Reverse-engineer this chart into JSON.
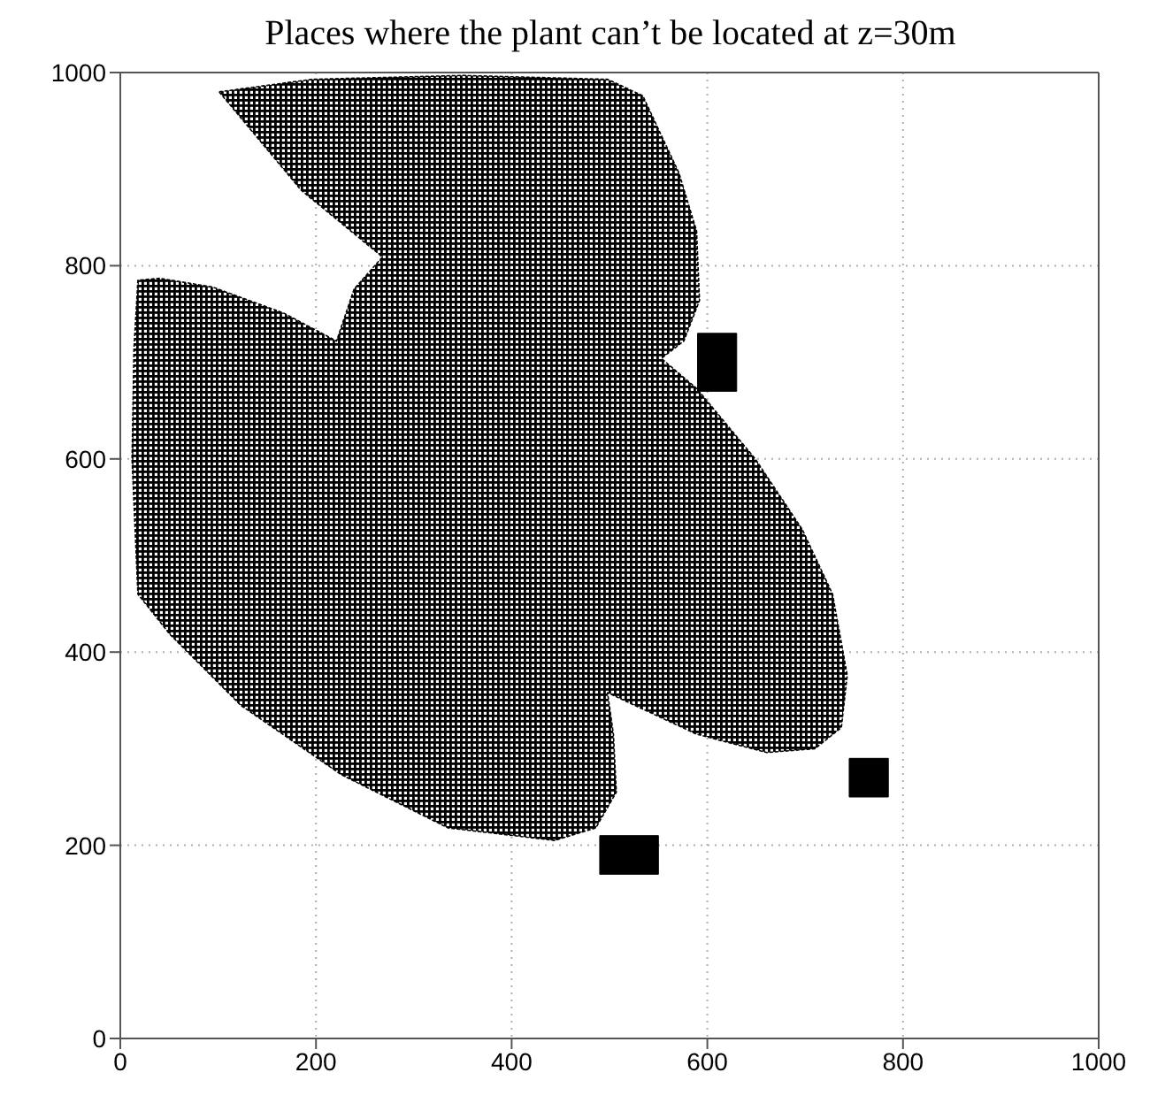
{
  "chart_data": {
    "type": "area",
    "title": "Places where the plant can’t be located at z=30m",
    "xlim": [
      0,
      1000
    ],
    "ylim": [
      0,
      1000
    ],
    "xticks": [
      0,
      200,
      400,
      600,
      800,
      1000
    ],
    "yticks": [
      0,
      200,
      400,
      600,
      800,
      1000
    ],
    "grid": true,
    "series": [
      {
        "color": "#000000",
        "x": [
          101,
          196,
          350,
          498,
          534,
          571,
          589,
          592,
          576,
          553,
          589,
          649,
          697,
          728,
          743,
          737,
          710,
          661,
          589,
          498,
          504,
          507,
          486,
          444,
          335,
          226,
          123,
          51,
          18,
          12,
          14,
          18,
          40,
          94,
          167,
          221,
          239,
          268,
          185
        ],
        "values": [
          980,
          993,
          997,
          993,
          976,
          896,
          836,
          764,
          722,
          704,
          673,
          600,
          527,
          460,
          376,
          322,
          300,
          296,
          315,
          358,
          315,
          255,
          218,
          205,
          218,
          273,
          345,
          418,
          460,
          600,
          715,
          785,
          787,
          778,
          751,
          722,
          776,
          809,
          878
        ]
      },
      {
        "color": "#000000",
        "x": [
          590,
          630,
          630,
          590
        ],
        "values": [
          670,
          670,
          730,
          730
        ]
      },
      {
        "color": "#000000",
        "x": [
          745,
          785,
          785,
          745
        ],
        "values": [
          250,
          250,
          290,
          290
        ]
      },
      {
        "color": "#000000",
        "x": [
          490,
          550,
          550,
          490
        ],
        "values": [
          170,
          170,
          210,
          210
        ]
      }
    ]
  }
}
